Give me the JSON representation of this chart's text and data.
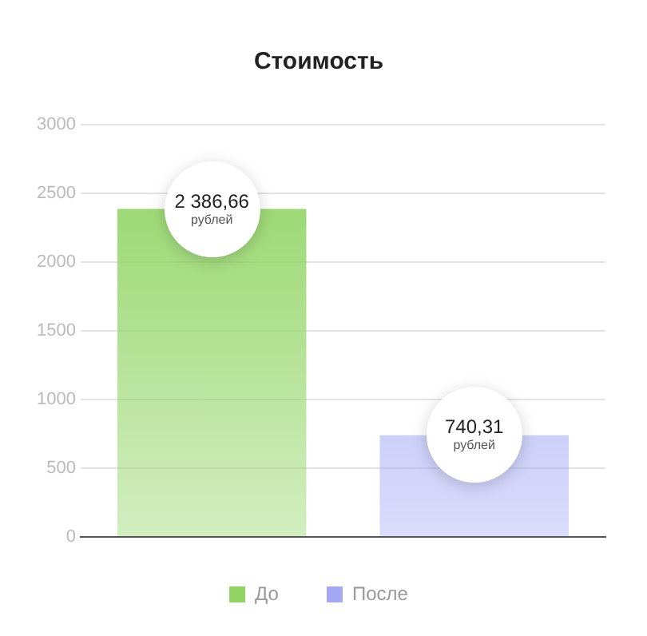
{
  "chart_data": {
    "type": "bar",
    "title": "Стоимость",
    "categories": [
      null,
      null
    ],
    "series": [
      {
        "name": "До",
        "color": "#8fd462",
        "values": [
          2386.66,
          null
        ],
        "value_labels": [
          "2 386,66",
          null
        ]
      },
      {
        "name": "После",
        "color": "#a3a8f4",
        "values": [
          null,
          740.31
        ],
        "value_labels": [
          null,
          "740,31"
        ]
      }
    ],
    "annotations": [
      "рублей",
      "рублей"
    ],
    "ylim": [
      0,
      3000
    ],
    "yticks": [
      0,
      500,
      1000,
      1500,
      2000,
      2500,
      3000
    ],
    "grid": "y",
    "legend": "bottom"
  }
}
